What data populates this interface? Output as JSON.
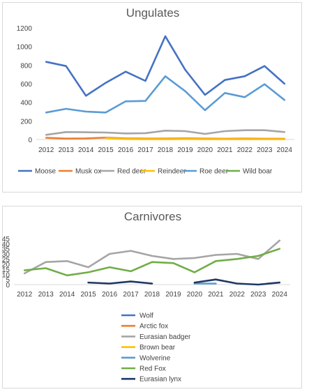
{
  "chart_data": [
    {
      "type": "line",
      "title": "Ungulates",
      "xlabel": "",
      "ylabel": "",
      "x": [
        2012,
        2013,
        2014,
        2015,
        2016,
        2017,
        2018,
        2019,
        2020,
        2021,
        2022,
        2023,
        2024
      ],
      "ylim": [
        0,
        1200
      ],
      "yticks": [
        0,
        200,
        400,
        600,
        800,
        1000,
        1200
      ],
      "grid": false,
      "legend": "bottom",
      "series": [
        {
          "name": "Moose",
          "color": "#4472c4",
          "values": [
            835,
            790,
            470,
            610,
            730,
            630,
            1110,
            750,
            480,
            640,
            680,
            790,
            600
          ]
        },
        {
          "name": "Musk ox",
          "color": "#ed7d31",
          "values": [
            18,
            10,
            12,
            20,
            12,
            10,
            10,
            12,
            10,
            8,
            10,
            8,
            8
          ]
        },
        {
          "name": "Red deer",
          "color": "#a5a5a5",
          "values": [
            50,
            80,
            78,
            75,
            65,
            68,
            95,
            90,
            60,
            90,
            100,
            100,
            80
          ]
        },
        {
          "name": "Reindeer",
          "color": "#ffc000",
          "values": [
            null,
            null,
            null,
            15,
            5,
            3,
            3,
            5,
            3,
            3,
            3,
            3,
            3
          ]
        },
        {
          "name": "Roe deer",
          "color": "#5b9bd5",
          "values": [
            290,
            330,
            300,
            290,
            410,
            415,
            680,
            520,
            315,
            500,
            455,
            595,
            425
          ]
        },
        {
          "name": "Wild boar",
          "color": "#70ad47",
          "values": [
            null,
            null,
            null,
            null,
            null,
            null,
            null,
            null,
            null,
            null,
            null,
            null,
            null
          ]
        }
      ]
    },
    {
      "type": "line",
      "title": "Carnivores",
      "xlabel": "",
      "ylabel": "",
      "x": [
        2012,
        2013,
        2014,
        2015,
        2016,
        2017,
        2018,
        2019,
        2020,
        2021,
        2022,
        2023,
        2024
      ],
      "ylim": [
        0,
        45
      ],
      "yticks": [
        0,
        5,
        10,
        15,
        20,
        25,
        30,
        35,
        40,
        45
      ],
      "grid": false,
      "legend": "bottom",
      "series": [
        {
          "name": "Wolf",
          "color": "#4472c4",
          "values": [
            null,
            null,
            null,
            null,
            null,
            null,
            null,
            null,
            null,
            null,
            null,
            null,
            null
          ]
        },
        {
          "name": "Arctic fox",
          "color": "#ed7d31",
          "values": [
            null,
            null,
            null,
            null,
            null,
            null,
            null,
            null,
            null,
            null,
            null,
            null,
            null
          ]
        },
        {
          "name": "Eurasian badger",
          "color": "#a5a5a5",
          "values": [
            11,
            22,
            23,
            17,
            30,
            33,
            28,
            25,
            26,
            29,
            30,
            25,
            43
          ]
        },
        {
          "name": "Brown bear",
          "color": "#ffc000",
          "values": [
            null,
            null,
            null,
            null,
            null,
            null,
            null,
            null,
            null,
            null,
            null,
            null,
            null
          ]
        },
        {
          "name": "Wolverine",
          "color": "#5b9bd5",
          "values": [
            null,
            null,
            null,
            null,
            null,
            null,
            null,
            null,
            1,
            1,
            null,
            null,
            null
          ]
        },
        {
          "name": "Red Fox",
          "color": "#70ad47",
          "values": [
            14,
            16,
            9,
            12,
            17,
            13,
            22,
            21,
            12,
            23,
            25,
            28,
            35
          ]
        },
        {
          "name": "Eurasian lynx",
          "color": "#1f3864",
          "values": [
            null,
            null,
            null,
            2,
            1,
            3,
            1,
            null,
            2,
            5,
            1,
            0,
            2
          ]
        }
      ]
    }
  ]
}
